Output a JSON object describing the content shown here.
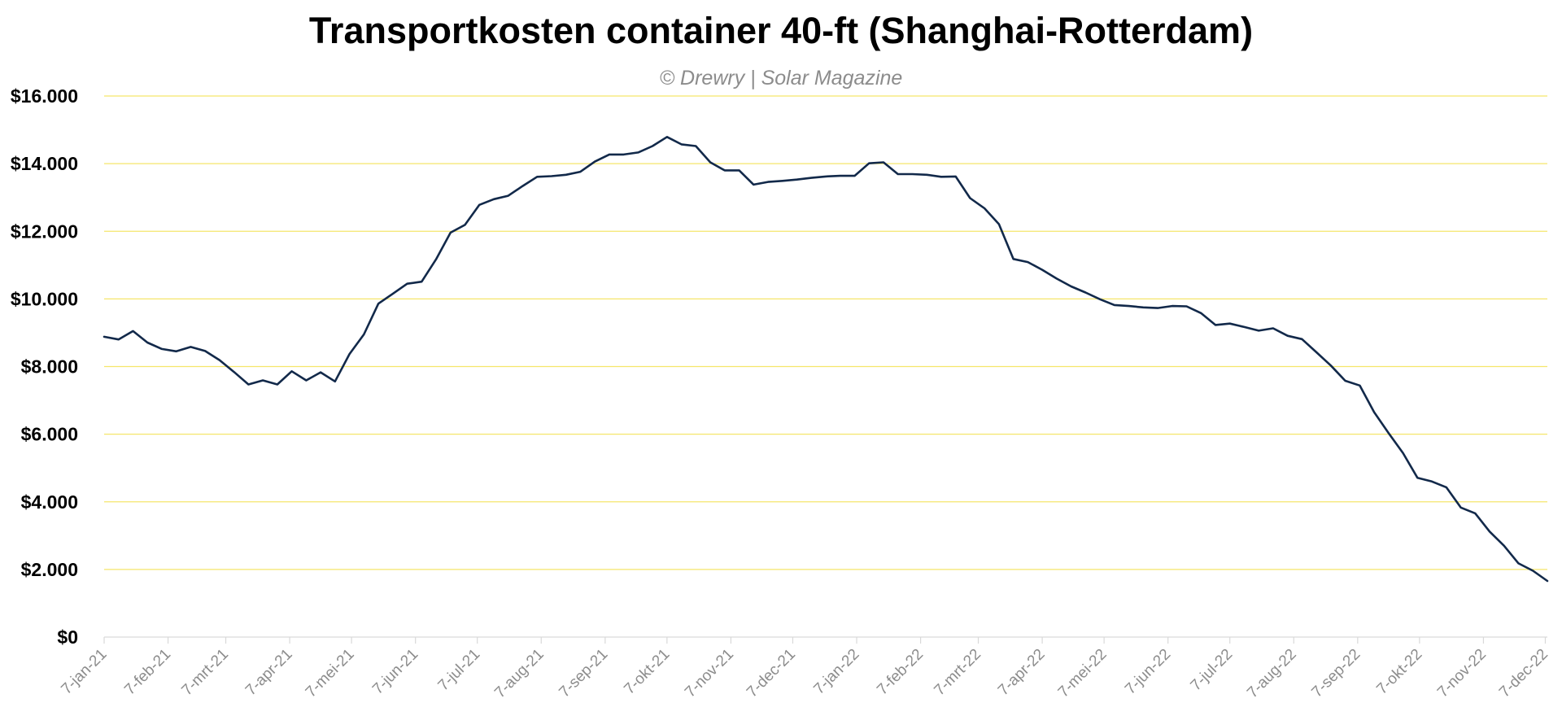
{
  "chart_data": {
    "type": "line",
    "title": "Transportkosten container 40-ft (Shanghai-Rotterdam)",
    "subtitle": "© Drewry | Solar Magazine",
    "xlabel": "",
    "ylabel": "",
    "ylim": [
      0,
      16000
    ],
    "y_ticks": [
      0,
      2000,
      4000,
      6000,
      8000,
      10000,
      12000,
      14000,
      16000
    ],
    "y_tick_labels": [
      "$0",
      "$2.000",
      "$4.000",
      "$6.000",
      "$8.000",
      "$10.000",
      "$12.000",
      "$14.000",
      "$16.000"
    ],
    "x_tick_labels": [
      "7-jan-21",
      "7-feb-21",
      "7-mrt-21",
      "7-apr-21",
      "7-mei-21",
      "7-jun-21",
      "7-jul-21",
      "7-aug-21",
      "7-sep-21",
      "7-okt-21",
      "7-nov-21",
      "7-dec-21",
      "7-jan-22",
      "7-feb-22",
      "7-mrt-22",
      "7-apr-22",
      "7-mei-22",
      "7-jun-22",
      "7-jul-22",
      "7-aug-22",
      "7-sep-22",
      "7-okt-22",
      "7-nov-22",
      "7-dec-22"
    ],
    "grid": true,
    "grid_color": "#f5e66b",
    "line_color": "#12294a",
    "series": [
      {
        "x": [
          "2021-01-07",
          "2021-01-14",
          "2021-01-21",
          "2021-01-28",
          "2021-02-04",
          "2021-02-11",
          "2021-02-18",
          "2021-02-25",
          "2021-03-04",
          "2021-03-11",
          "2021-03-18",
          "2021-03-25",
          "2021-04-01",
          "2021-04-08",
          "2021-04-15",
          "2021-04-22",
          "2021-04-29",
          "2021-05-06",
          "2021-05-13",
          "2021-05-20",
          "2021-05-27",
          "2021-06-03",
          "2021-06-10",
          "2021-06-17",
          "2021-06-24",
          "2021-07-01",
          "2021-07-08",
          "2021-07-15",
          "2021-07-22",
          "2021-07-29",
          "2021-08-05",
          "2021-08-12",
          "2021-08-19",
          "2021-08-26",
          "2021-09-02",
          "2021-09-09",
          "2021-09-16",
          "2021-09-23",
          "2021-09-30",
          "2021-10-07",
          "2021-10-14",
          "2021-10-21",
          "2021-10-28",
          "2021-11-04",
          "2021-11-11",
          "2021-11-18",
          "2021-11-25",
          "2021-12-02",
          "2021-12-09",
          "2021-12-16",
          "2021-12-23",
          "2021-12-30",
          "2022-01-06",
          "2022-01-13",
          "2022-01-20",
          "2022-01-27",
          "2022-02-03",
          "2022-02-10",
          "2022-02-17",
          "2022-02-24",
          "2022-03-03",
          "2022-03-10",
          "2022-03-17",
          "2022-03-24",
          "2022-03-31",
          "2022-04-07",
          "2022-04-14",
          "2022-04-21",
          "2022-04-28",
          "2022-05-05",
          "2022-05-12",
          "2022-05-19",
          "2022-05-26",
          "2022-06-02",
          "2022-06-09",
          "2022-06-16",
          "2022-06-23",
          "2022-06-30",
          "2022-07-07",
          "2022-07-14",
          "2022-07-21",
          "2022-07-28",
          "2022-08-04",
          "2022-08-11",
          "2022-08-18",
          "2022-08-25",
          "2022-09-01",
          "2022-09-08",
          "2022-09-15",
          "2022-09-22",
          "2022-09-29",
          "2022-10-06",
          "2022-10-13",
          "2022-10-20",
          "2022-10-27",
          "2022-11-03",
          "2022-11-10",
          "2022-11-17",
          "2022-11-24",
          "2022-12-01",
          "2022-12-08"
        ],
        "values": [
          8880,
          8800,
          9050,
          8710,
          8520,
          8450,
          8580,
          8460,
          8190,
          7840,
          7470,
          7590,
          7470,
          7860,
          7590,
          7830,
          7560,
          8370,
          8950,
          9860,
          10150,
          10450,
          10510,
          11170,
          11960,
          12190,
          12780,
          12950,
          13050,
          13340,
          13610,
          13630,
          13670,
          13760,
          14060,
          14270,
          14270,
          14330,
          14520,
          14790,
          14570,
          14520,
          14040,
          13800,
          13800,
          13380,
          13460,
          13490,
          13530,
          13580,
          13620,
          13640,
          13640,
          14010,
          14040,
          13690,
          13690,
          13670,
          13610,
          13620,
          12980,
          12680,
          12210,
          11180,
          11090,
          10860,
          10600,
          10370,
          10190,
          9990,
          9820,
          9790,
          9750,
          9730,
          9790,
          9780,
          9580,
          9230,
          9270,
          9170,
          9060,
          9130,
          8910,
          8810,
          8420,
          8030,
          7580,
          7440,
          6650,
          6030,
          5440,
          4710,
          4600,
          4430,
          3830,
          3660,
          3120,
          2700,
          2180,
          1960,
          1660
        ]
      }
    ]
  }
}
